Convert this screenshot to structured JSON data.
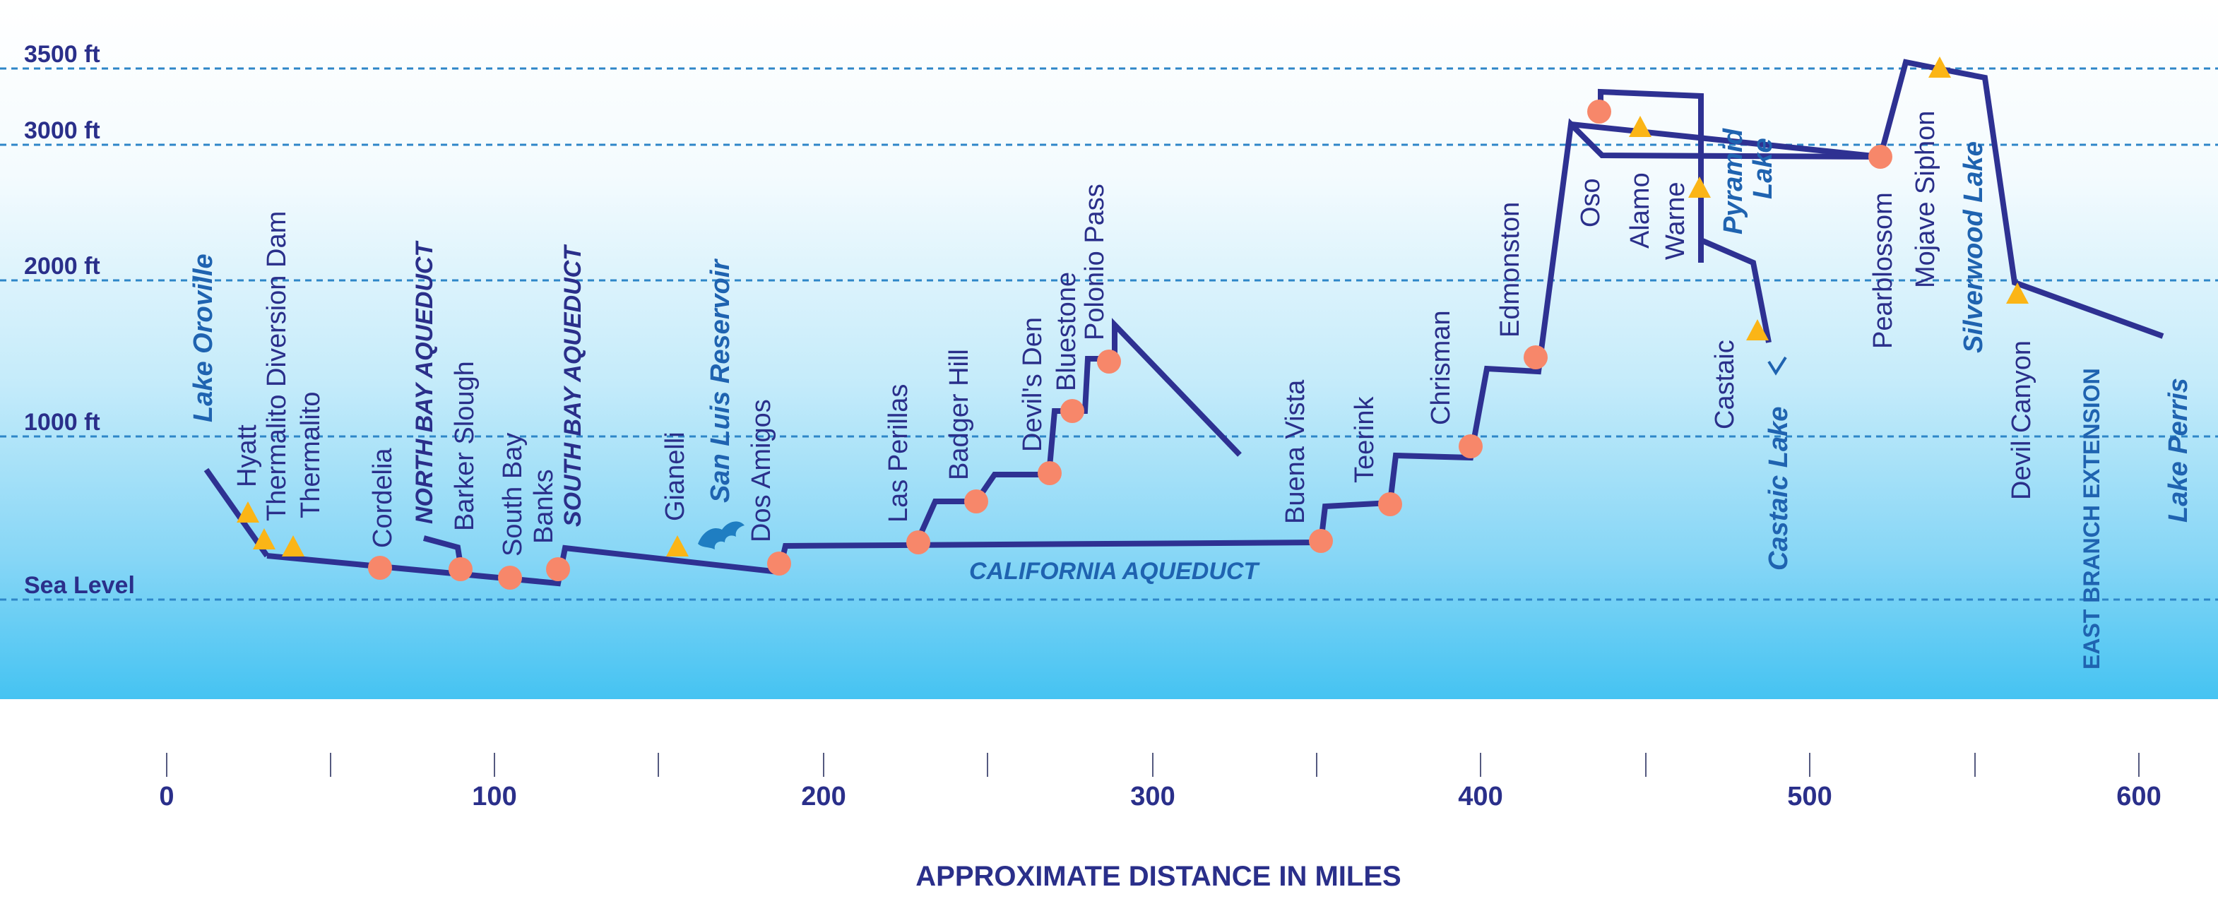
{
  "elevation_labels": {
    "ft3500": "3500 ft",
    "ft3000": "3000 ft",
    "ft2000": "2000 ft",
    "ft1000": "1000 ft",
    "sea": "Sea Level"
  },
  "distance_labels": {
    "d0": "0",
    "d100": "100",
    "d200": "200",
    "d300": "300",
    "d400": "400",
    "d500": "500",
    "d600": "600"
  },
  "axis_title": "APPROXIMATE DISTANCE IN MILES",
  "water_bodies": {
    "oroville": "Lake Oroville",
    "san_luis": "San Luis Reservoir",
    "pyramid_1": "Pyramid",
    "pyramid_2": "Lake",
    "castaic_lake": "Castaic Lake",
    "silverwood": "Silverwood Lake",
    "perris": "Lake Perris"
  },
  "aqueducts": {
    "north_bay": "NORTH BAY AQUEDUCT",
    "south_bay": "SOUTH BAY AQUEDUCT",
    "california": "CALIFORNIA AQUEDUCT",
    "east_branch": "EAST BRANCH EXTENSION"
  },
  "facilities": {
    "hyatt": "Hyatt",
    "thermalito_diversion": "Thermalito Diversion Dam",
    "thermalito": "Thermalito",
    "cordelia": "Cordelia",
    "barker_slough": "Barker Slough",
    "south_bay": "South Bay",
    "banks": "Banks",
    "gianelli": "Gianelli",
    "dos_amigos": "Dos Amigos",
    "las_perillas": "Las Perillas",
    "badger_hill": "Badger Hill",
    "devils_den": "Devil's Den",
    "bluestone": "Bluestone",
    "polonio_pass": "Polonio Pass",
    "buena_vista": "Buena Vista",
    "teerink": "Teerink",
    "chrisman": "Chrisman",
    "edmonston": "Edmonston",
    "oso": "Oso",
    "alamo": "Alamo",
    "warne": "Warne",
    "castaic": "Castaic",
    "pearblossom": "Pearblossom",
    "mojave_siphon": "Mojave Siphon",
    "devil_canyon": "Devil Canyon"
  },
  "colors": {
    "aqueduct_line": "#2e3192",
    "pumping_plant": "#f7876a",
    "power_plant": "#fbb516",
    "grid_line": "#2e86c8",
    "text_dark": "#2a2f8a",
    "text_water": "#1f63b0",
    "sky_bottom": "#45c3f2"
  },
  "legend_semantics": {
    "circle": "pumping-plant",
    "triangle": "power-plant"
  }
}
